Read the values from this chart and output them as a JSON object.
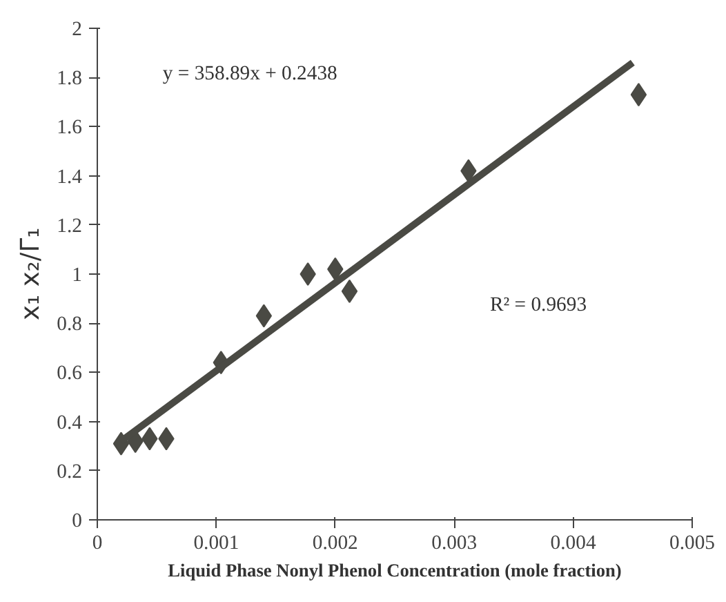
{
  "chart_data": {
    "type": "scatter",
    "xlabel": "Liquid Phase Nonyl Phenol Concentration (mole fraction)",
    "ylabel": "x₁ x₂/Γ₁",
    "xlim": [
      0,
      0.005
    ],
    "ylim": [
      0,
      2
    ],
    "xticks": [
      0,
      0.001,
      0.002,
      0.003,
      0.004,
      0.005
    ],
    "yticks": [
      0,
      0.2,
      0.4,
      0.6,
      0.8,
      1,
      1.2,
      1.4,
      1.6,
      1.8,
      2
    ],
    "grid": false,
    "annotations": [
      "y = 358.89x + 0.2438",
      "R² = 0.9693"
    ],
    "series": [
      {
        "marker": "diamond",
        "color": "#4a4a44",
        "x": [
          0.0002,
          0.00032,
          0.00044,
          0.00058,
          0.00104,
          0.0014,
          0.00177,
          0.002,
          0.00212,
          0.00312,
          0.00455
        ],
        "values": [
          0.31,
          0.32,
          0.33,
          0.33,
          0.64,
          0.83,
          1.0,
          1.02,
          0.93,
          1.42,
          1.73
        ]
      },
      {
        "type": "line",
        "color": "#4a4a44",
        "x": [
          0.0002,
          0.0045
        ],
        "values": [
          0.32,
          1.86
        ]
      }
    ]
  }
}
